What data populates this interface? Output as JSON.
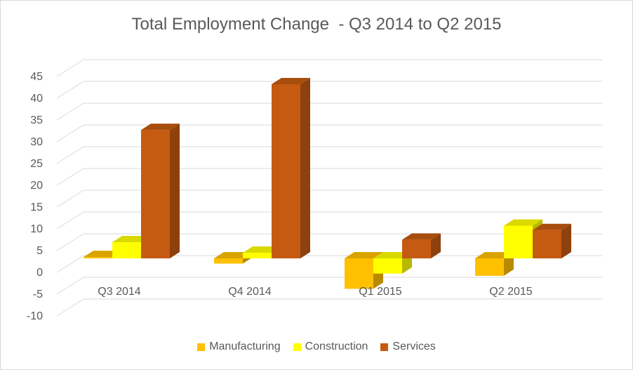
{
  "chart_data": {
    "type": "bar",
    "title": "Total Employment Change  - Q3 2014 to Q2 2015",
    "xlabel": "",
    "ylabel": "",
    "categories": [
      "Q3 2014",
      "Q4 2014",
      "Q1 2015",
      "Q2 2015"
    ],
    "series": [
      {
        "name": "Manufacturing",
        "color": "#ffc000",
        "values": [
          0.3,
          -1.2,
          -7,
          -4
        ]
      },
      {
        "name": "Construction",
        "color": "#ffff00",
        "values": [
          3.7,
          1.3,
          -3.5,
          7.5
        ]
      },
      {
        "name": "Services",
        "color": "#c55a11",
        "values": [
          29.5,
          40,
          4.3,
          6.5
        ]
      }
    ],
    "ylim": [
      -10,
      45
    ],
    "yticks": [
      -10,
      -5,
      0,
      5,
      10,
      15,
      20,
      25,
      30,
      35,
      40,
      45
    ],
    "grid": true,
    "legend": "bottom"
  }
}
